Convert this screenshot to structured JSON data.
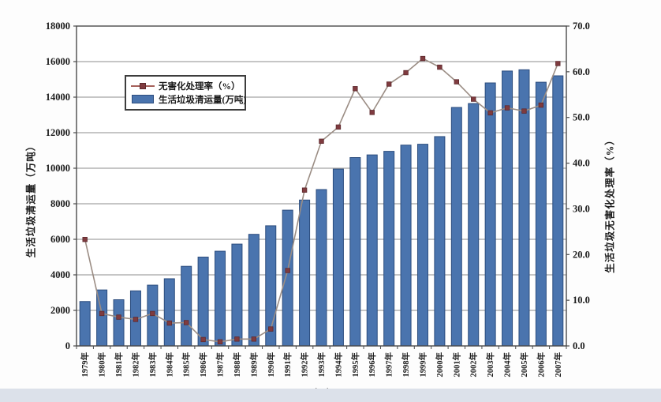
{
  "chart": {
    "x_axis_title": "年度",
    "left_axis_title": "生活垃圾清运量（万吨）",
    "right_axis_title": "生活垃圾无害化处理率（%）",
    "legend": {
      "series_line": "无害化处理率（%）",
      "series_bar": "生活垃圾清运量(万吨)"
    }
  },
  "chart_data": {
    "type": "bar",
    "subtype": "bar+line combo, dual axis",
    "title": "",
    "xlabel": "年度",
    "ylabel_left": "生活垃圾清运量（万吨）",
    "ylabel_right": "生活垃圾无害化处理率（%）",
    "legend_position": "upper-left inside plot",
    "grid": "horizontal",
    "categories": [
      "1979年",
      "1980年",
      "1981年",
      "1982年",
      "1983年",
      "1984年",
      "1985年",
      "1986年",
      "1987年",
      "1988年",
      "1989年",
      "1990年",
      "1991年",
      "1992年",
      "1993年",
      "1994年",
      "1995年",
      "1996年",
      "1997年",
      "1998年",
      "1999年",
      "2000年",
      "2001年",
      "2002年",
      "2003年",
      "2004年",
      "2005年",
      "2006年",
      "2007年"
    ],
    "series": [
      {
        "name": "生活垃圾清运量(万吨)",
        "type": "bar",
        "axis": "left",
        "values": [
          2500,
          3150,
          2600,
          3100,
          3420,
          3780,
          4480,
          5000,
          5330,
          5730,
          6280,
          6760,
          7640,
          8210,
          8800,
          9950,
          10600,
          10750,
          10950,
          11300,
          11350,
          11780,
          13420,
          13640,
          14800,
          15470,
          15540,
          14840,
          15200
        ]
      },
      {
        "name": "无害化处理率（%）",
        "type": "line",
        "axis": "right",
        "values": [
          23.3,
          7.1,
          6.3,
          5.8,
          7.1,
          5.0,
          5.1,
          1.4,
          0.9,
          1.5,
          1.5,
          3.7,
          16.5,
          34.1,
          44.8,
          47.9,
          56.3,
          51.1,
          57.3,
          59.8,
          62.9,
          61.0,
          57.8,
          54.0,
          51.0,
          52.1,
          51.4,
          52.7,
          61.8
        ]
      }
    ],
    "left_axis": {
      "min": 0,
      "max": 18000,
      "tick_step": 2000,
      "tick_labels": [
        "0",
        "2000",
        "4000",
        "6000",
        "8000",
        "10000",
        "12000",
        "14000",
        "16000",
        "18000"
      ]
    },
    "right_axis": {
      "min": 0,
      "max": 70,
      "tick_step": 10,
      "tick_labels": [
        "0.0",
        "10.0",
        "20.0",
        "30.0",
        "40.0",
        "50.0",
        "60.0",
        "70.0"
      ]
    },
    "colors": {
      "bar_fill": "#4a74ae",
      "bar_border": "#2c4d7e",
      "line": "#9b8d84",
      "marker": "#7f3b3f",
      "gridline": "#8c8c8c",
      "axis": "#4a4a4a",
      "text": "#1c1c1c"
    }
  }
}
